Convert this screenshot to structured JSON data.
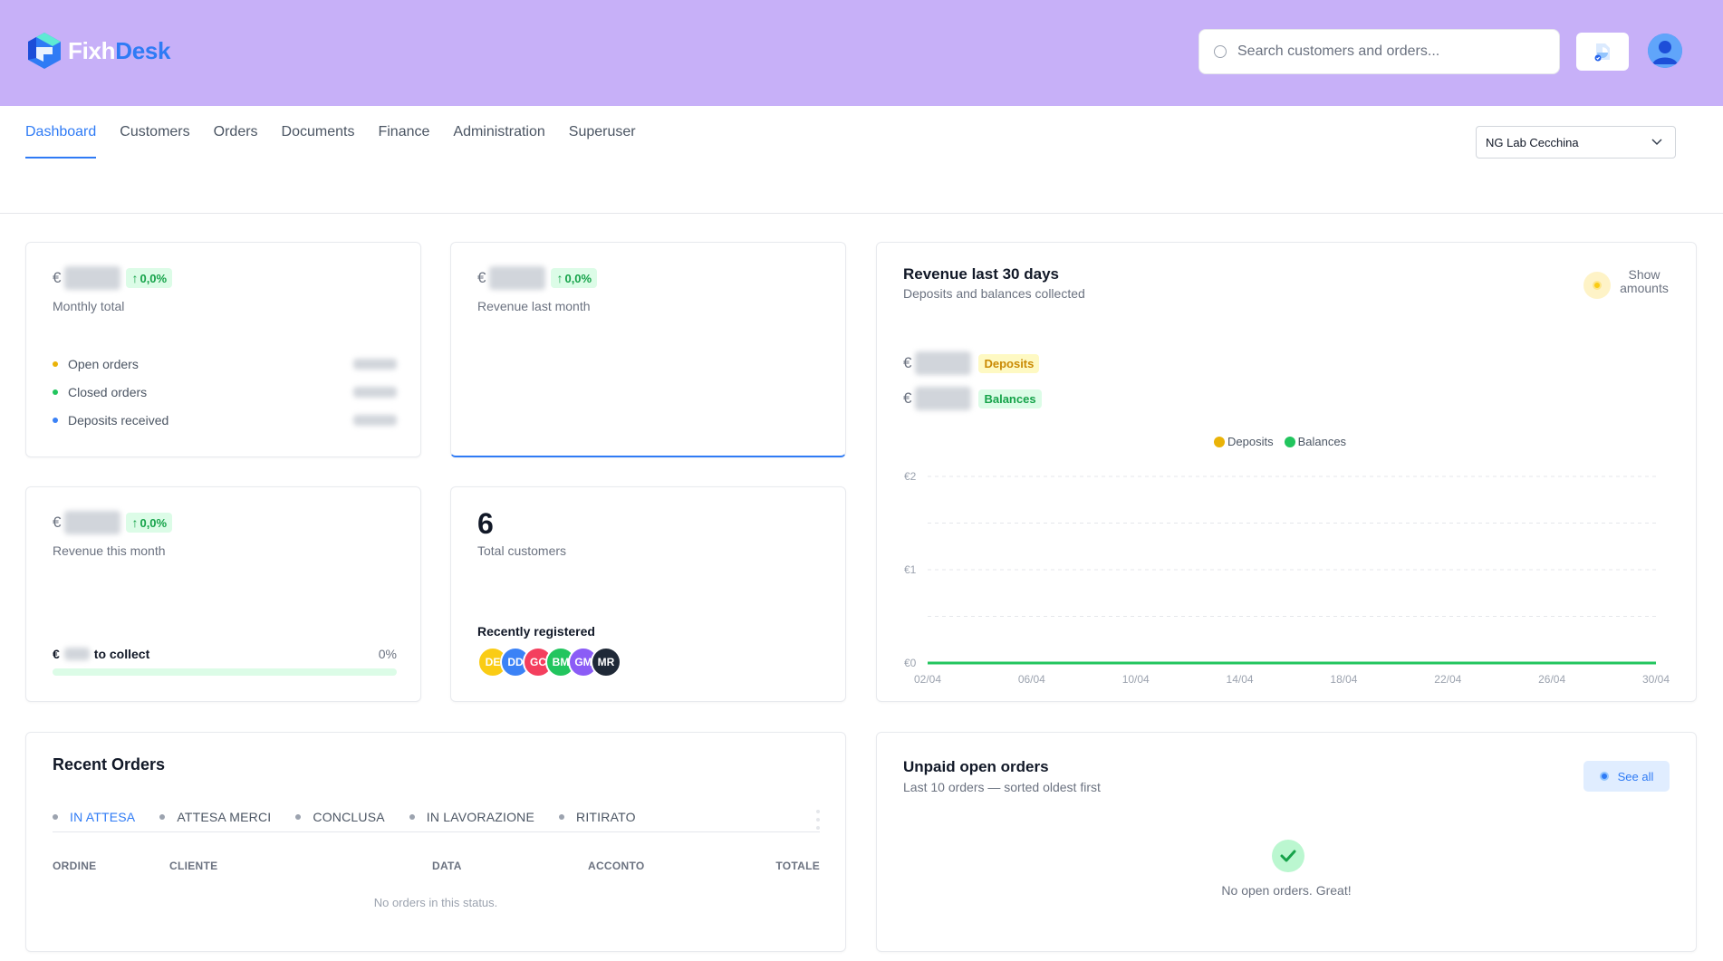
{
  "header": {
    "logo_part1": "Fixh",
    "logo_part2": "Desk",
    "search_placeholder": "Search customers and orders...",
    "doc_icon": "document-chart-icon",
    "avatar_icon": "user-icon"
  },
  "nav": {
    "items": [
      "Dashboard",
      "Customers",
      "Orders",
      "Documents",
      "Finance",
      "Administration",
      "Superuser"
    ],
    "active": "Dashboard",
    "lab_select": "NG Lab Cecchina"
  },
  "kpi_monthly": {
    "currency": "€",
    "change": "0,0%",
    "label": "Monthly total",
    "rows": [
      {
        "label": "Open orders",
        "color": "#eab308"
      },
      {
        "label": "Closed orders",
        "color": "#22c55e"
      },
      {
        "label": "Deposits received",
        "color": "#3b82f6"
      }
    ]
  },
  "kpi_last_month": {
    "currency": "€",
    "change": "0,0%",
    "label": "Revenue last month"
  },
  "kpi_this_month": {
    "currency": "€",
    "change": "0,0%",
    "label": "Revenue this month",
    "collect_currency": "€",
    "collect_label": "to collect",
    "collect_pct": "0%",
    "collect_fraction": 0
  },
  "customers": {
    "total": "6",
    "label": "Total customers",
    "recent_title": "Recently registered",
    "avatars": [
      {
        "initials": "DE",
        "color": "#facc15"
      },
      {
        "initials": "DD",
        "color": "#3b82f6"
      },
      {
        "initials": "GC",
        "color": "#f43f5e"
      },
      {
        "initials": "BM",
        "color": "#22c55e"
      },
      {
        "initials": "GM",
        "color": "#8b5cf6"
      },
      {
        "initials": "MR",
        "color": "#1f2937"
      }
    ]
  },
  "revenue_chart": {
    "title": "Revenue last 30 days",
    "subtitle": "Deposits and balances collected",
    "toggle_label": "Show amounts",
    "deposits_tag": "Deposits",
    "balances_tag": "Balances",
    "currency": "€"
  },
  "chart_data": {
    "type": "line",
    "x": [
      "02/04",
      "06/04",
      "10/04",
      "14/04",
      "18/04",
      "22/04",
      "26/04",
      "30/04"
    ],
    "yticks": [
      "€0",
      "€1",
      "€2"
    ],
    "ylim": [
      0,
      2
    ],
    "legend_position": "top",
    "grid": true,
    "series": [
      {
        "name": "Deposits",
        "color": "#eab308",
        "values": [
          0,
          0,
          0,
          0,
          0,
          0,
          0,
          0
        ]
      },
      {
        "name": "Balances",
        "color": "#22c55e",
        "values": [
          0,
          0,
          0,
          0,
          0,
          0,
          0,
          0
        ]
      }
    ]
  },
  "recent_orders": {
    "title": "Recent Orders",
    "tabs": [
      "IN ATTESA",
      "ATTESA MERCI",
      "CONCLUSA",
      "IN LAVORAZIONE",
      "RITIRATO"
    ],
    "active_tab": "IN ATTESA",
    "columns": [
      "ORDINE",
      "CLIENTE",
      "DATA",
      "ACCONTO",
      "TOTALE"
    ],
    "empty_message": "No orders in this status."
  },
  "unpaid": {
    "title": "Unpaid open orders",
    "subtitle": "Last 10 orders — sorted oldest first",
    "see_all": "See all",
    "empty_message": "No open orders. Great!"
  }
}
